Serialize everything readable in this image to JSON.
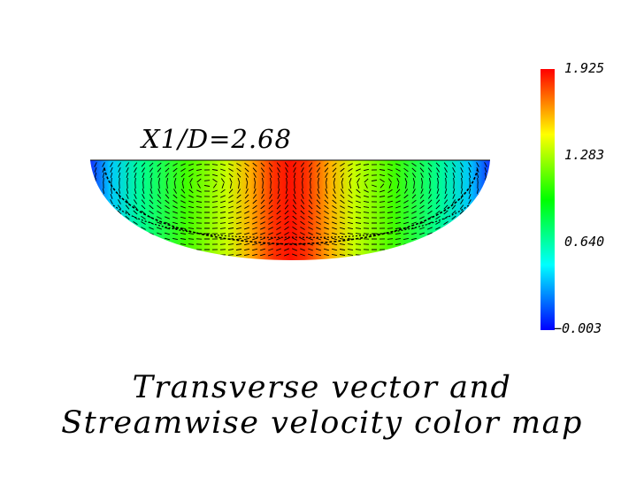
{
  "plot": {
    "station_label": "X1/D=2.68"
  },
  "colorbar": {
    "ticks": [
      "1.925",
      "1.283",
      "0.640",
      "−0.003"
    ],
    "colors": [
      "#0000ff",
      "#00ffff",
      "#00ff00",
      "#ffff00",
      "#ff0000"
    ]
  },
  "caption": {
    "line1": "Transverse vector and",
    "line2": "Streamwise velocity color map"
  }
}
